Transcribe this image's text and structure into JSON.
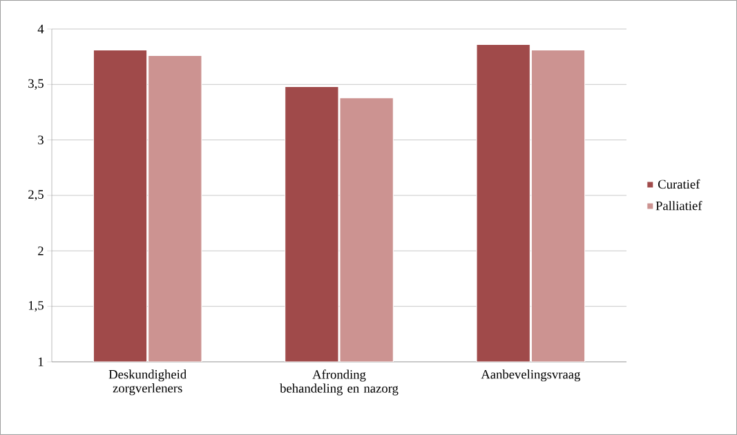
{
  "chart_data": {
    "type": "bar",
    "categories": [
      "Deskundigheid zorgverleners",
      "Afronding behandeling en nazorg",
      "Aanbevelingsvraag"
    ],
    "series": [
      {
        "name": "Curatief",
        "color": "#a04a4a",
        "values": [
          3.81,
          3.48,
          3.86
        ]
      },
      {
        "name": "Palliatief",
        "color": "#cc9391",
        "values": [
          3.76,
          3.38,
          3.81
        ]
      }
    ],
    "ylim": [
      1,
      4
    ],
    "yticks": [
      1,
      {
        "value": 1.5,
        "label": "1,5"
      },
      2,
      {
        "value": 2.5,
        "label": "2,5"
      },
      3,
      {
        "value": 3.5,
        "label": "3,5"
      },
      4
    ],
    "grid": "y",
    "legend": "right"
  }
}
